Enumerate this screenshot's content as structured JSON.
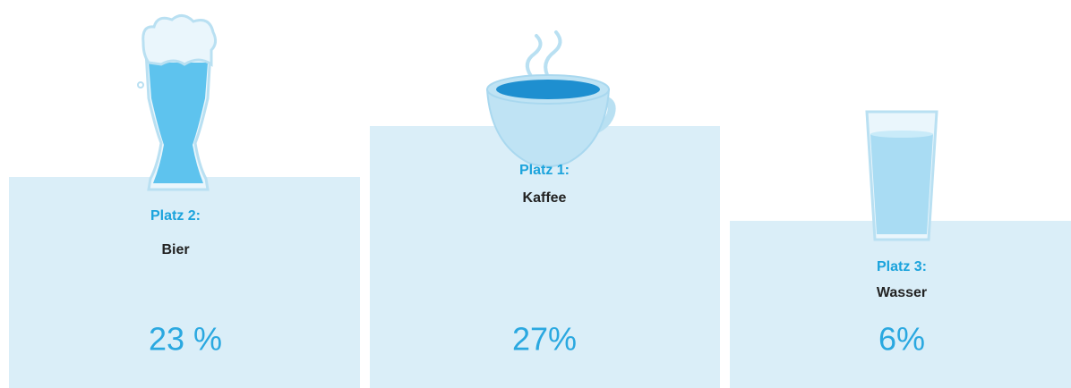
{
  "podium": [
    {
      "rank": "Platz 2:",
      "drink": "Bier",
      "share": "23 %"
    },
    {
      "rank": "Platz 1:",
      "drink": "Kaffee",
      "share": "27%"
    },
    {
      "rank": "Platz 3:",
      "drink": "Wasser",
      "share": "6%"
    }
  ]
}
